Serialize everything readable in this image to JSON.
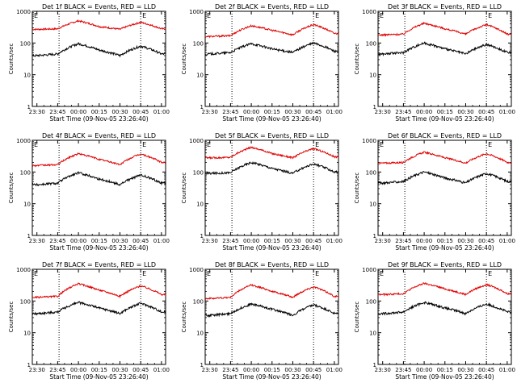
{
  "common": {
    "xlabel": "Start Time (09-Nov-05 23:26:40)",
    "ylabel": "Counts/sec",
    "x_tick_labels": [
      "23:30",
      "23:45",
      "00:00",
      "00:15",
      "00:30",
      "00:45",
      "01:00"
    ],
    "y_tick_labels": [
      "1",
      "10",
      "100",
      "1000"
    ],
    "markers": [
      "E",
      "E"
    ],
    "series_colors": {
      "events": "#000000",
      "lld": "#e00000"
    }
  },
  "chart_data": [
    {
      "type": "line",
      "title": "Det 1f BLACK = Events, RED = LLD",
      "x_time_min_since_2330": [
        0,
        15,
        30,
        45,
        60,
        75,
        90
      ],
      "ylog": true,
      "ylim": [
        1,
        1000
      ],
      "series": [
        {
          "values_events_approx": [
            40,
            45,
            95,
            60,
            40,
            80,
            45
          ]
        },
        {
          "values_lld_approx": [
            270,
            280,
            500,
            330,
            270,
            450,
            280
          ]
        }
      ]
    },
    {
      "type": "line",
      "title": "Det 2f BLACK = Events, RED = LLD",
      "x_time_min_since_2330": [
        0,
        15,
        30,
        45,
        60,
        75,
        90
      ],
      "ylog": true,
      "ylim": [
        1,
        1000
      ],
      "series": [
        {
          "values_events_approx": [
            45,
            50,
            95,
            65,
            50,
            100,
            55
          ]
        },
        {
          "values_lld_approx": [
            160,
            170,
            350,
            250,
            180,
            380,
            200
          ]
        }
      ]
    },
    {
      "type": "line",
      "title": "Det 3f BLACK = Events, RED = LLD",
      "x_time_min_since_2330": [
        0,
        15,
        30,
        45,
        60,
        75,
        90
      ],
      "ylog": true,
      "ylim": [
        1,
        1000
      ],
      "series": [
        {
          "values_events_approx": [
            45,
            50,
            100,
            65,
            45,
            90,
            50
          ]
        },
        {
          "values_lld_approx": [
            180,
            190,
            420,
            280,
            190,
            380,
            190
          ]
        }
      ]
    },
    {
      "type": "line",
      "title": "Det 4f BLACK = Events, RED = LLD",
      "x_time_min_since_2330": [
        0,
        15,
        30,
        45,
        60,
        75,
        90
      ],
      "ylog": true,
      "ylim": [
        1,
        1000
      ],
      "series": [
        {
          "values_events_approx": [
            40,
            45,
            95,
            60,
            40,
            80,
            45
          ]
        },
        {
          "values_lld_approx": [
            160,
            170,
            380,
            250,
            170,
            370,
            200
          ]
        }
      ]
    },
    {
      "type": "line",
      "title": "Det 5f BLACK = Events, RED = LLD",
      "x_time_min_since_2330": [
        0,
        15,
        30,
        45,
        60,
        75,
        90
      ],
      "ylog": true,
      "ylim": [
        1,
        1000
      ],
      "series": [
        {
          "values_events_approx": [
            90,
            95,
            200,
            130,
            90,
            180,
            100
          ]
        },
        {
          "values_lld_approx": [
            280,
            290,
            600,
            380,
            280,
            550,
            300
          ]
        }
      ]
    },
    {
      "type": "line",
      "title": "Det 6f BLACK = Events, RED = LLD",
      "x_time_min_since_2330": [
        0,
        15,
        30,
        45,
        60,
        75,
        90
      ],
      "ylog": true,
      "ylim": [
        1,
        1000
      ],
      "series": [
        {
          "values_events_approx": [
            45,
            50,
            100,
            65,
            45,
            90,
            50
          ]
        },
        {
          "values_lld_approx": [
            190,
            200,
            420,
            280,
            190,
            380,
            200
          ]
        }
      ]
    },
    {
      "type": "line",
      "title": "Det 7f BLACK = Events, RED = LLD",
      "x_time_min_since_2330": [
        0,
        15,
        30,
        45,
        60,
        75,
        90
      ],
      "ylog": true,
      "ylim": [
        1,
        1000
      ],
      "series": [
        {
          "values_events_approx": [
            40,
            45,
            90,
            60,
            40,
            85,
            45
          ]
        },
        {
          "values_lld_approx": [
            130,
            140,
            350,
            220,
            140,
            300,
            160
          ]
        }
      ]
    },
    {
      "type": "line",
      "title": "Det 8f BLACK = Events, RED = LLD",
      "x_time_min_since_2330": [
        0,
        15,
        30,
        45,
        60,
        75,
        90
      ],
      "ylog": true,
      "ylim": [
        1,
        1000
      ],
      "series": [
        {
          "values_events_approx": [
            35,
            40,
            80,
            55,
            35,
            75,
            40
          ]
        },
        {
          "values_lld_approx": [
            120,
            130,
            320,
            200,
            130,
            280,
            140
          ]
        }
      ]
    },
    {
      "type": "line",
      "title": "Det 9f BLACK = Events, RED = LLD",
      "x_time_min_since_2330": [
        0,
        15,
        30,
        45,
        60,
        75,
        90
      ],
      "ylog": true,
      "ylim": [
        1,
        1000
      ],
      "series": [
        {
          "values_events_approx": [
            40,
            45,
            90,
            60,
            40,
            80,
            45
          ]
        },
        {
          "values_lld_approx": [
            160,
            170,
            360,
            240,
            160,
            330,
            170
          ]
        }
      ]
    }
  ]
}
